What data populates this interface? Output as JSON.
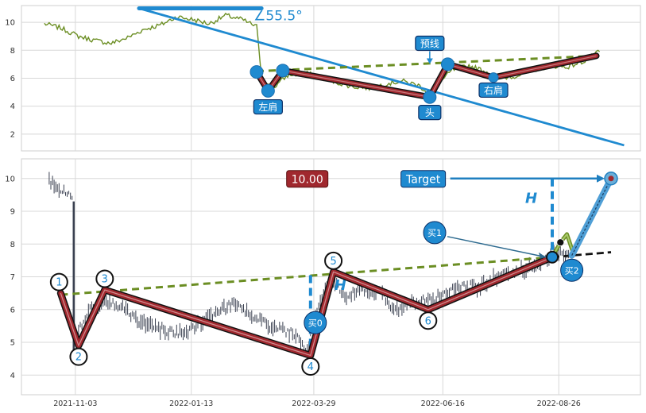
{
  "chart_data": [
    {
      "type": "line",
      "title": "",
      "xlabel": "",
      "ylabel": "",
      "grid": true,
      "xlim": [
        "2021-10-01",
        "2022-10-15"
      ],
      "ylim": [
        0.8,
        11.2
      ],
      "yticks": [
        2,
        4,
        6,
        8,
        10
      ],
      "colors": {
        "price": "#6b8e23",
        "neckline": "#6b8e23",
        "trend": "#1f8ad0",
        "pattern_outer": "#111111",
        "pattern_inner": "#a0282e",
        "marker": "#1f8ad0",
        "label_bg": "#1f8ad0"
      },
      "series": [
        {
          "id": "price",
          "x": [
            "2021-10-15",
            "2021-10-25",
            "2021-11-05",
            "2021-11-15",
            "2021-11-25",
            "2021-12-05",
            "2021-12-15",
            "2021-12-25",
            "2022-01-04",
            "2022-01-14",
            "2022-01-24",
            "2022-02-03",
            "2022-02-13",
            "2022-02-22",
            "2022-02-25",
            "2022-03-03",
            "2022-03-13",
            "2022-03-23",
            "2022-04-02",
            "2022-04-12",
            "2022-04-22",
            "2022-05-02",
            "2022-05-12",
            "2022-05-22",
            "2022-06-01",
            "2022-06-08",
            "2022-06-15",
            "2022-06-22",
            "2022-07-02",
            "2022-07-12",
            "2022-07-22",
            "2022-08-01",
            "2022-08-11",
            "2022-08-21",
            "2022-08-31",
            "2022-09-10",
            "2022-09-20"
          ],
          "y": [
            9.9,
            9.6,
            9.0,
            8.7,
            8.5,
            8.9,
            9.5,
            9.8,
            10.4,
            10.2,
            9.9,
            10.5,
            10.2,
            9.7,
            6.2,
            5.2,
            6.2,
            6.4,
            6.1,
            5.7,
            5.4,
            5.3,
            5.6,
            5.8,
            5.5,
            4.9,
            5.8,
            6.6,
            6.9,
            6.5,
            6.0,
            6.2,
            6.6,
            6.9,
            6.8,
            7.2,
            7.9
          ]
        }
      ],
      "pattern_points": [
        {
          "x": "2022-02-22",
          "y": 6.45
        },
        {
          "x": "2022-03-01",
          "y": 5.1
        },
        {
          "x": "2022-03-10",
          "y": 6.55
        },
        {
          "x": "2022-06-08",
          "y": 4.65
        },
        {
          "x": "2022-06-19",
          "y": 7.0
        },
        {
          "x": "2022-07-17",
          "y": 6.05
        },
        {
          "x": "2022-09-18",
          "y": 7.6
        }
      ],
      "neckline": [
        {
          "x": "2022-02-22",
          "y": 6.5
        },
        {
          "x": "2022-09-18",
          "y": 7.6
        }
      ],
      "trendline": {
        "from": {
          "x": "2021-12-12",
          "y": 11.0
        },
        "to": {
          "x": "2022-10-05",
          "y": 1.2
        },
        "bar_from": {
          "x": "2021-12-12",
          "y": 11.0
        },
        "bar_to": {
          "x": "2022-02-25",
          "y": 11.0
        }
      },
      "angle_label": "∠55.5°",
      "annotations": [
        {
          "text": "左肩",
          "x": "2022-03-01",
          "y": 3.95
        },
        {
          "text": "头",
          "x": "2022-06-08",
          "y": 3.55
        },
        {
          "text": "右肩",
          "x": "2022-07-17",
          "y": 5.15
        },
        {
          "text": "预线",
          "x": "2022-06-08",
          "y": 8.5
        }
      ]
    },
    {
      "type": "candlestick",
      "title": "",
      "xlabel": "",
      "ylabel": "",
      "grid": true,
      "xlim": [
        "2021-10-01",
        "2022-10-15"
      ],
      "ylim": [
        3.4,
        10.6
      ],
      "yticks": [
        4,
        5,
        6,
        7,
        8,
        9,
        10
      ],
      "xticks": [
        "2021-11-03",
        "2022-01-13",
        "2022-03-29",
        "2022-06-16",
        "2022-08-26"
      ],
      "colors": {
        "candles": "#3a4050",
        "neckline": "#6b8e23",
        "pattern_outer": "#111111",
        "pattern_inner": "#a0282e",
        "target_arrow": "#1f7fc0",
        "h_line": "#1f8ad0",
        "value_box": "#a0282e",
        "target_box": "#1f8ad0"
      },
      "price_path": {
        "x": [
          "2021-10-18",
          "2021-10-25",
          "2021-11-01",
          "2021-11-03",
          "2021-11-06",
          "2021-11-12",
          "2021-11-20",
          "2021-12-01",
          "2021-12-10",
          "2021-12-20",
          "2021-12-31",
          "2022-01-10",
          "2022-01-20",
          "2022-01-31",
          "2022-02-10",
          "2022-02-20",
          "2022-03-01",
          "2022-03-10",
          "2022-03-18",
          "2022-03-25",
          "2022-04-01",
          "2022-04-09",
          "2022-04-18",
          "2022-04-28",
          "2022-05-08",
          "2022-05-18",
          "2022-05-28",
          "2022-06-08",
          "2022-06-18",
          "2022-06-28",
          "2022-07-08",
          "2022-07-18",
          "2022-07-28",
          "2022-08-08",
          "2022-08-16",
          "2022-08-22",
          "2022-08-25",
          "2022-08-29",
          "2022-09-02"
        ],
        "y": [
          9.9,
          9.7,
          9.4,
          5.0,
          5.5,
          6.0,
          6.2,
          6.1,
          5.7,
          5.5,
          5.3,
          5.3,
          5.6,
          6.0,
          6.2,
          5.8,
          5.5,
          5.4,
          5.2,
          4.8,
          6.2,
          7.0,
          6.4,
          6.6,
          6.5,
          6.0,
          6.2,
          6.3,
          6.5,
          6.7,
          6.7,
          7.0,
          7.1,
          7.3,
          7.4,
          7.7,
          7.8,
          7.7,
          7.6
        ]
      },
      "pattern_points": [
        {
          "label": "1",
          "x": "2021-10-25",
          "y": 6.5
        },
        {
          "label": "2",
          "x": "2021-11-05",
          "y": 4.9
        },
        {
          "label": "3",
          "x": "2021-11-21",
          "y": 6.6
        },
        {
          "label": "4",
          "x": "2022-03-27",
          "y": 4.6
        },
        {
          "label": "5",
          "x": "2022-04-10",
          "y": 7.15
        },
        {
          "label": "6",
          "x": "2022-06-07",
          "y": 6.0
        },
        {
          "label": "",
          "x": "2022-08-22",
          "y": 7.6
        }
      ],
      "neckline": [
        {
          "x": "2021-10-25",
          "y": 6.45
        },
        {
          "x": "2022-08-22",
          "y": 7.6
        }
      ],
      "neckline_extension": [
        {
          "x": "2022-08-22",
          "y": 7.6
        },
        {
          "x": "2022-09-27",
          "y": 7.75
        }
      ],
      "h_measure": {
        "x": "2022-03-27",
        "y_top": 7.05,
        "y_bottom": 4.6,
        "label": "H"
      },
      "h_measure_target": {
        "x": "2022-08-22",
        "y_top": 10.0,
        "y_bottom": 7.6,
        "label": "H"
      },
      "value_box": "10.00",
      "target_label": "Target",
      "target_point": {
        "x": "2022-09-27",
        "y": 10.0
      },
      "buy_points": [
        {
          "label": "买0",
          "x": "2022-03-27",
          "y": 5.6
        },
        {
          "label": "买1",
          "x": "2022-08-22",
          "y": 7.6,
          "callout_y": 8.35
        },
        {
          "label": "买2",
          "x": "2022-09-02",
          "y": 7.65
        }
      ],
      "breakout": [
        {
          "x": "2022-08-22",
          "y": 7.6
        },
        {
          "x": "2022-08-27",
          "y": 8.05
        },
        {
          "x": "2022-08-31",
          "y": 8.3
        },
        {
          "x": "2022-09-04",
          "y": 7.7
        }
      ]
    }
  ]
}
